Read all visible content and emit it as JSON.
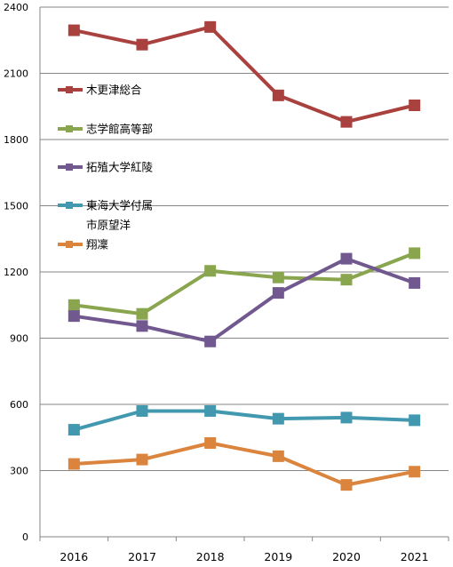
{
  "chart_data": {
    "type": "line",
    "x": [
      "2016",
      "2017",
      "2018",
      "2019",
      "2020",
      "2021"
    ],
    "ylim": [
      0,
      2400
    ],
    "yticks": [
      0,
      300,
      600,
      900,
      1200,
      1500,
      1800,
      2100,
      2400
    ],
    "grid": "horizontal",
    "legend_position": "left-inside",
    "series": [
      {
        "name": "木更津総合",
        "color": "#a9413e",
        "values": [
          2295,
          2230,
          2310,
          2000,
          1880,
          1955
        ]
      },
      {
        "name": "志学館高等部",
        "color": "#89a54e",
        "values": [
          1050,
          1010,
          1205,
          1175,
          1165,
          1285
        ]
      },
      {
        "name": "拓殖大学紅陵",
        "color": "#71588f",
        "values": [
          1000,
          955,
          885,
          1105,
          1260,
          1150
        ]
      },
      {
        "name": "東海大学付属\n市原望洋",
        "color": "#4198af",
        "values": [
          485,
          570,
          570,
          535,
          540,
          528
        ]
      },
      {
        "name": "翔凜",
        "color": "#db843d",
        "values": [
          330,
          350,
          425,
          365,
          235,
          295
        ]
      }
    ]
  }
}
